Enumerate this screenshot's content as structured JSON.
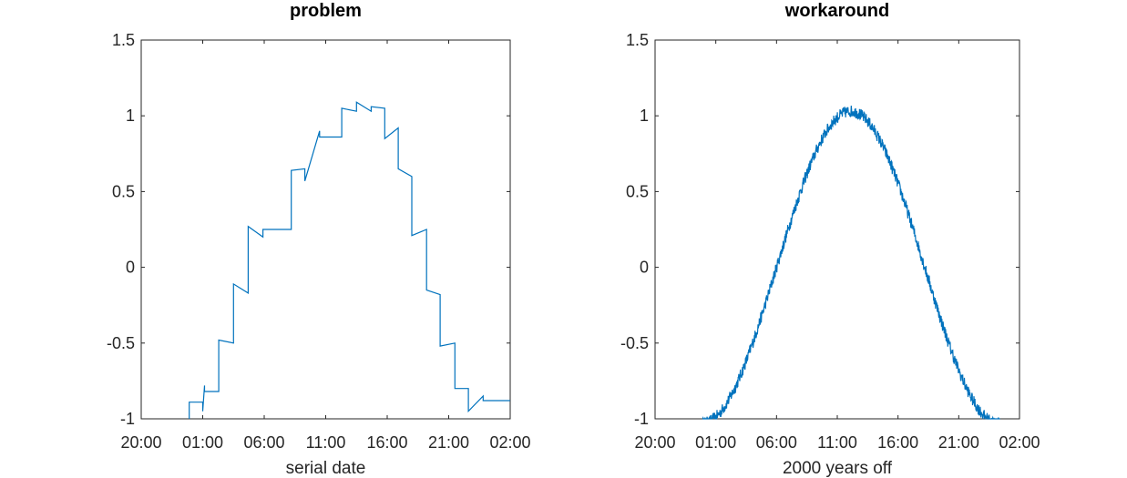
{
  "chart_data": [
    {
      "type": "line",
      "title": "problem",
      "xlabel": "serial date",
      "ylabel": "",
      "ylim": [
        -1,
        1.5
      ],
      "xlim": [
        "20:00",
        "02:00"
      ],
      "yticks": [
        "-1",
        "-0.5",
        "0",
        "0.5",
        "1",
        "1.5"
      ],
      "xticks": [
        "20:00",
        "01:00",
        "06:00",
        "11:00",
        "16:00",
        "21:00",
        "02:00"
      ],
      "xtick_hours": [
        0,
        5,
        10,
        15,
        20,
        25,
        30
      ],
      "grid": false,
      "color": "#0072BD",
      "series": [
        {
          "hours": [
            3.9,
            3.9,
            5.0,
            5.0,
            5.15,
            5.15,
            6.3,
            6.3,
            7.5,
            7.5,
            8.7,
            8.7,
            9.9,
            9.9,
            12.2,
            12.2,
            13.3,
            13.3,
            14.5,
            14.5,
            16.3,
            16.3,
            17.5,
            17.5,
            18.7,
            18.7,
            19.8,
            19.8,
            20.9,
            20.9,
            22.0,
            22.0,
            23.2,
            23.2,
            24.3,
            24.3,
            25.5,
            25.5,
            26.6,
            26.6,
            27.8,
            27.8,
            28.9,
            28.9,
            30.0
          ],
          "values": [
            -1.0,
            -0.89,
            -0.89,
            -0.95,
            -0.78,
            -0.82,
            -0.82,
            -0.48,
            -0.5,
            -0.11,
            -0.17,
            0.27,
            0.2,
            0.25,
            0.25,
            0.64,
            0.65,
            0.57,
            0.9,
            0.86,
            0.86,
            1.05,
            1.03,
            1.09,
            1.03,
            1.06,
            1.05,
            0.85,
            0.92,
            0.65,
            0.6,
            0.21,
            0.25,
            -0.15,
            -0.18,
            -0.52,
            -0.5,
            -0.8,
            -0.8,
            -0.95,
            -0.85,
            -0.88,
            -0.88,
            -0.88,
            -0.88
          ]
        }
      ]
    },
    {
      "type": "line",
      "title": "workaround",
      "xlabel": "2000 years off",
      "ylabel": "",
      "ylim": [
        -1,
        1.5
      ],
      "xlim": [
        "20:00",
        "02:00"
      ],
      "yticks": [
        "-1",
        "-0.5",
        "0",
        "0.5",
        "1",
        "1.5"
      ],
      "xticks": [
        "20:00",
        "01:00",
        "06:00",
        "11:00",
        "16:00",
        "21:00",
        "02:00"
      ],
      "xtick_hours": [
        0,
        5,
        10,
        15,
        20,
        25,
        30
      ],
      "grid": false,
      "color": "#0072BD",
      "series": [
        {
          "function": "noisy sine",
          "x_start_hour": 3.9,
          "x_end_hour": 28.4,
          "peak_hour": 16.1,
          "amplitude": 1.03,
          "noise": 0.04
        }
      ]
    }
  ]
}
